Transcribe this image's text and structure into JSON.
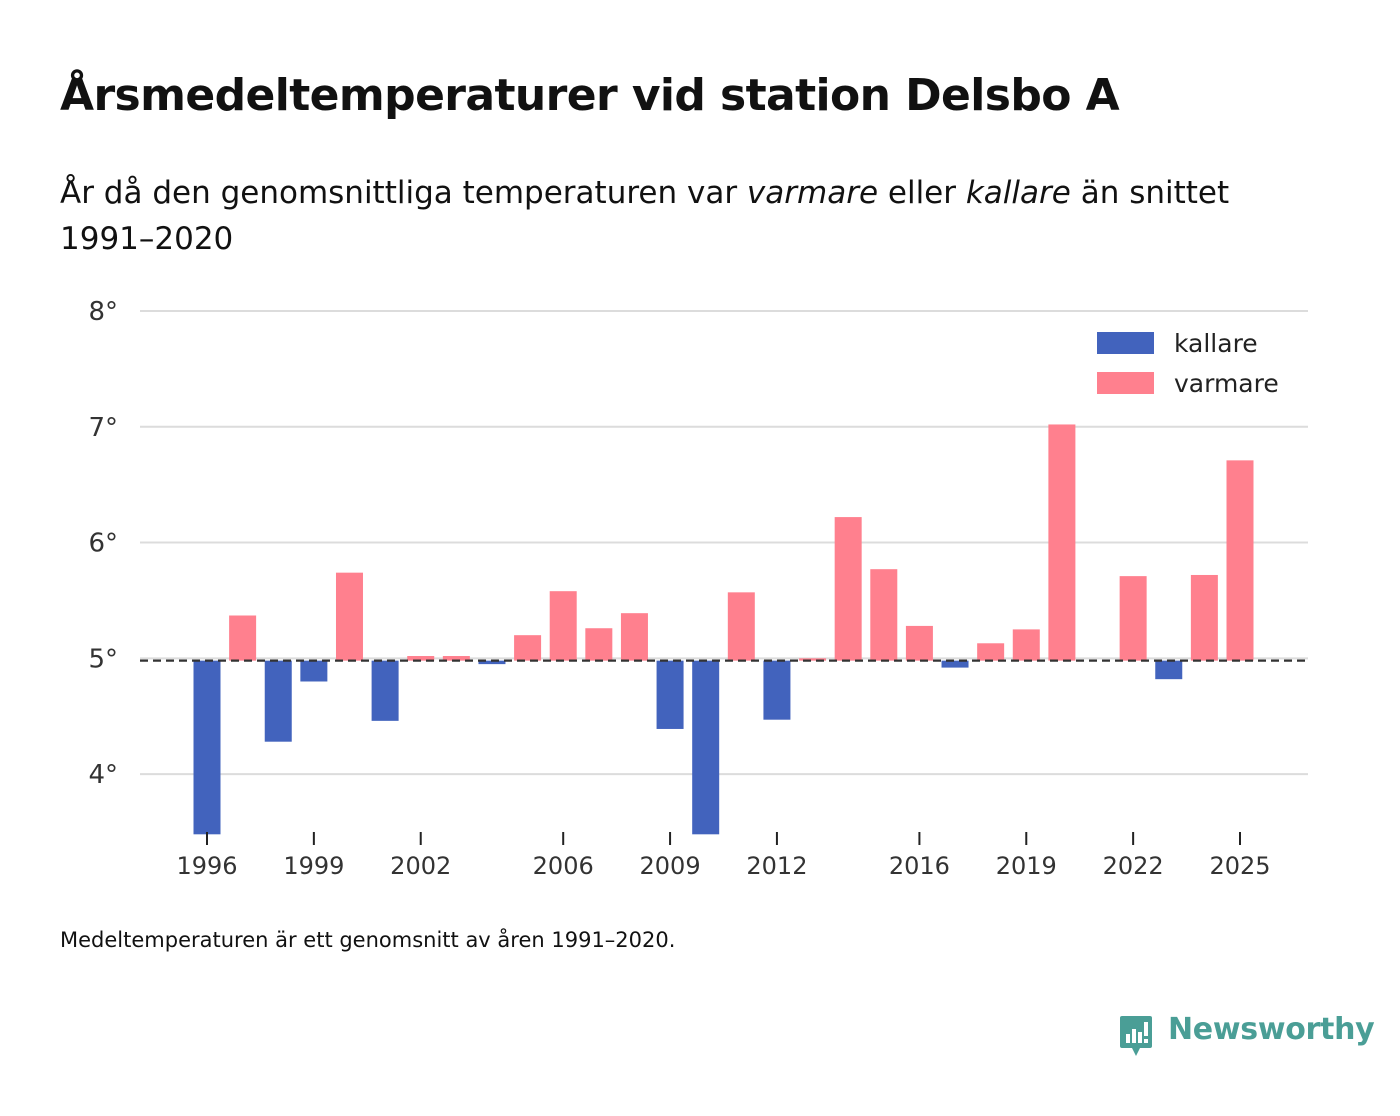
{
  "header": {
    "title": "Årsmedeltemperaturer vid station Delsbo A",
    "subtitle_part1": "År då den genomsnittliga temperaturen var ",
    "subtitle_em1": "varmare",
    "subtitle_part2": " eller ",
    "subtitle_em2": "kallare",
    "subtitle_part3": " än snittet 1991–2020"
  },
  "footnote": "Medeltemperaturen är ett genomsnitt av åren 1991–2020.",
  "brand": {
    "name": "Newsworthy",
    "color": "#4a9e96"
  },
  "chart_data": {
    "type": "bar",
    "title": "Årsmedeltemperaturer vid station Delsbo A",
    "xlabel": "",
    "ylabel": "",
    "baseline": 4.98,
    "ylim": [
      3.5,
      8.0
    ],
    "yticks": [
      4,
      5,
      6,
      7,
      8
    ],
    "ytick_labels": [
      "4°",
      "5°",
      "6°",
      "7°",
      "8°"
    ],
    "xticks": [
      1996,
      1999,
      2002,
      2006,
      2009,
      2012,
      2016,
      2019,
      2022,
      2025
    ],
    "xtick_labels": [
      "1996",
      "1999",
      "2002",
      "2006",
      "2009",
      "2012",
      "2016",
      "2019",
      "2022",
      "2025"
    ],
    "grid": true,
    "legend_position": "top-right",
    "series": [
      {
        "name": "kallare",
        "color": "#4263bd"
      },
      {
        "name": "varmare",
        "color": "#ff808e"
      }
    ],
    "categories": [
      1996,
      1997,
      1998,
      1999,
      2000,
      2001,
      2002,
      2003,
      2004,
      2005,
      2006,
      2007,
      2008,
      2009,
      2010,
      2011,
      2012,
      2013,
      2014,
      2015,
      2016,
      2017,
      2018,
      2019,
      2020,
      2021,
      2022,
      2023,
      2024,
      2025
    ],
    "values": [
      3.48,
      5.37,
      4.28,
      4.8,
      5.74,
      4.46,
      5.02,
      5.02,
      4.95,
      5.2,
      5.58,
      5.26,
      5.39,
      4.39,
      3.48,
      5.57,
      4.47,
      5.0,
      6.22,
      5.77,
      5.28,
      4.92,
      5.13,
      5.25,
      7.02,
      4.98,
      5.71,
      4.82,
      5.72,
      6.71
    ]
  }
}
